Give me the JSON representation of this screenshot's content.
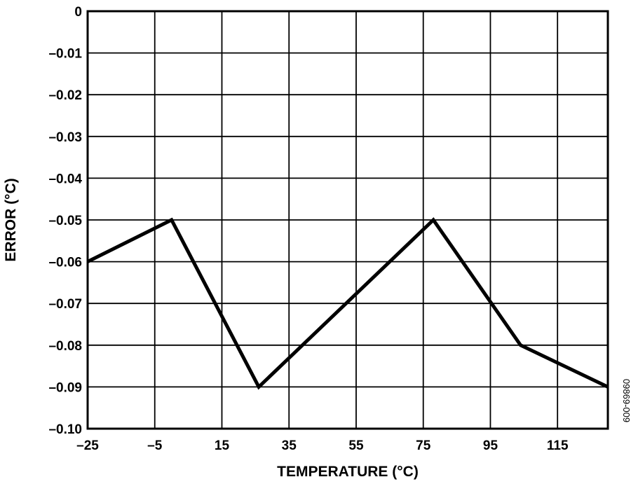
{
  "chart_data": {
    "type": "line",
    "xlabel": "TEMPERATURE (°C)",
    "ylabel": "ERROR (°C)",
    "xlim": [
      -25,
      130
    ],
    "ylim": [
      -0.1,
      0
    ],
    "x_ticks": [
      -25,
      -5,
      15,
      35,
      55,
      75,
      95,
      115
    ],
    "x_tick_labels": [
      "–25",
      "–5",
      "15",
      "35",
      "55",
      "75",
      "95",
      "115"
    ],
    "y_ticks": [
      0,
      -0.01,
      -0.02,
      -0.03,
      -0.04,
      -0.05,
      -0.06,
      -0.07,
      -0.08,
      -0.09,
      -0.1
    ],
    "y_tick_labels": [
      "0",
      "–0.01",
      "–0.02",
      "–0.03",
      "–0.04",
      "–0.05",
      "–0.06",
      "–0.07",
      "–0.08",
      "–0.09",
      "–0.10"
    ],
    "grid": true,
    "series": [
      {
        "x": [
          -25,
          0,
          26,
          78,
          104,
          130
        ],
        "y": [
          -0.06,
          -0.05,
          -0.09,
          -0.05,
          -0.08,
          -0.09
        ]
      }
    ],
    "line_color": "#000000",
    "figure_id": "09869-009"
  }
}
